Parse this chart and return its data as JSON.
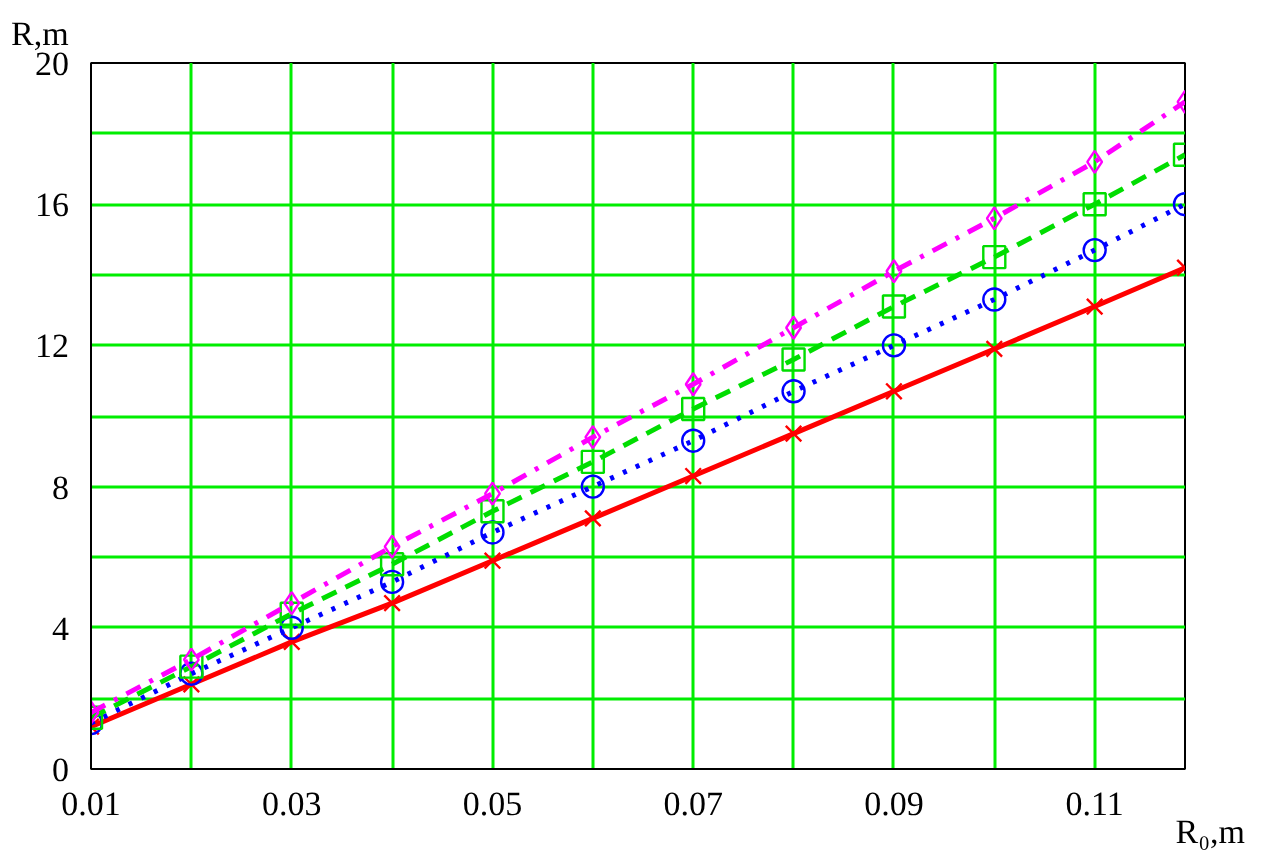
{
  "chart_data": {
    "type": "line",
    "xlabel": "R₀,m",
    "ylabel": "R,m",
    "x": [
      0.01,
      0.02,
      0.03,
      0.04,
      0.05,
      0.06,
      0.07,
      0.08,
      0.09,
      0.1,
      0.11,
      0.119
    ],
    "series": [
      {
        "color": "#ff0000",
        "marker": "cross",
        "line_style": "solid",
        "values": [
          1.2,
          2.4,
          3.6,
          4.7,
          5.9,
          7.1,
          8.3,
          9.5,
          10.7,
          11.9,
          13.1,
          14.2
        ]
      },
      {
        "color": "#0000ff",
        "marker": "circle",
        "line_style": "dotted",
        "values": [
          1.3,
          2.7,
          4.0,
          5.3,
          6.7,
          8.0,
          9.3,
          10.7,
          12.0,
          13.3,
          14.7,
          16.0
        ]
      },
      {
        "color": "#00dd00",
        "marker": "square",
        "line_style": "dashed",
        "values": [
          1.45,
          2.9,
          4.4,
          5.8,
          7.3,
          8.7,
          10.2,
          11.6,
          13.1,
          14.5,
          16.0,
          17.4
        ]
      },
      {
        "color": "#ff00ff",
        "marker": "diamond",
        "line_style": "dashdot",
        "values": [
          1.6,
          3.1,
          4.7,
          6.3,
          7.8,
          9.4,
          10.9,
          12.5,
          14.1,
          15.6,
          17.2,
          18.9
        ]
      }
    ],
    "xlim": [
      0.01,
      0.119
    ],
    "ylim": [
      0,
      20
    ],
    "xticks": [
      0.01,
      {
        "value": 0.02,
        "label": null
      },
      0.03,
      {
        "value": 0.04,
        "label": null
      },
      0.05,
      {
        "value": 0.06,
        "label": null
      },
      0.07,
      {
        "value": 0.08,
        "label": null
      },
      0.09,
      {
        "value": 0.1,
        "label": null
      },
      0.11
    ],
    "yticks": [
      0,
      {
        "value": 2,
        "label": null
      },
      4,
      {
        "value": 6,
        "label": null
      },
      8,
      {
        "value": 10,
        "label": null
      },
      12,
      {
        "value": 14,
        "label": null
      },
      16,
      {
        "value": 18,
        "label": null
      },
      20
    ],
    "grid": true
  }
}
